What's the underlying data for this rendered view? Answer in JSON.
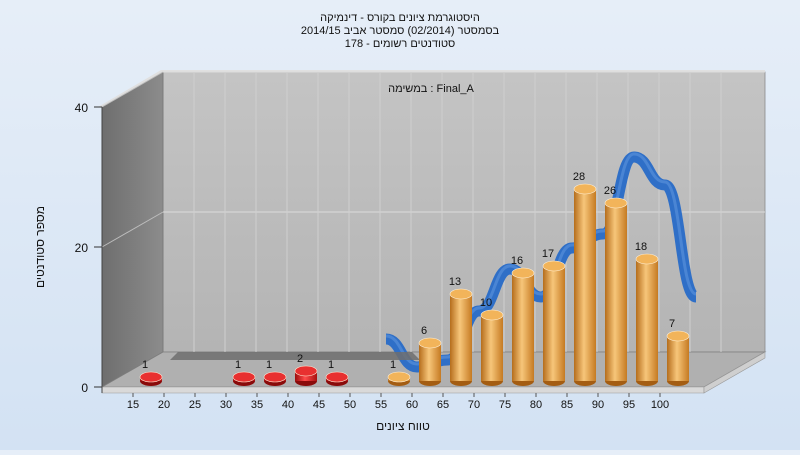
{
  "chart_data": {
    "type": "bar",
    "title_lines": [
      "היסטוגרמת ציונים בקורס - דינמיקה",
      "בסמסטר  (02/2014)  סמסטר אביב 2014/15",
      "סטודנטים רשומים - 178"
    ],
    "subtitle": "במשימה : Final_A",
    "xlabel": "טווח ציונים",
    "ylabel": "מספר סטודנטים",
    "x_ticks": [
      15,
      20,
      25,
      30,
      35,
      40,
      45,
      50,
      55,
      60,
      65,
      70,
      75,
      80,
      85,
      90,
      95,
      100
    ],
    "y_ticks": [
      0,
      20,
      40
    ],
    "ylim": [
      0,
      40
    ],
    "grid": true,
    "series": [
      {
        "points": [
          {
            "x": 15,
            "y": 1,
            "color": "#d81e1e"
          },
          {
            "x": 30,
            "y": 1,
            "color": "#d81e1e"
          },
          {
            "x": 35,
            "y": 1,
            "color": "#d81e1e"
          },
          {
            "x": 40,
            "y": 2,
            "color": "#d81e1e"
          },
          {
            "x": 45,
            "y": 1,
            "color": "#d81e1e"
          },
          {
            "x": 55,
            "y": 1,
            "color": "#e8a040"
          },
          {
            "x": 60,
            "y": 6,
            "color": "#e8a040"
          },
          {
            "x": 65,
            "y": 13,
            "color": "#e8a040"
          },
          {
            "x": 70,
            "y": 10,
            "color": "#e8a040"
          },
          {
            "x": 75,
            "y": 16,
            "color": "#e8a040"
          },
          {
            "x": 80,
            "y": 17,
            "color": "#e8a040"
          },
          {
            "x": 85,
            "y": 28,
            "color": "#e8a040"
          },
          {
            "x": 90,
            "y": 26,
            "color": "#e8a040"
          },
          {
            "x": 95,
            "y": 18,
            "color": "#e8a040"
          },
          {
            "x": 100,
            "y": 7,
            "color": "#e8a040"
          }
        ]
      }
    ],
    "curve": {
      "type": "line",
      "color": "#2f6fc7",
      "points": [
        [
          50,
          4
        ],
        [
          55,
          0
        ],
        [
          60,
          1
        ],
        [
          65,
          8
        ],
        [
          70,
          14
        ],
        [
          75,
          10
        ],
        [
          80,
          17
        ],
        [
          85,
          19
        ],
        [
          90,
          30
        ],
        [
          95,
          26
        ],
        [
          100,
          10
        ]
      ]
    }
  }
}
